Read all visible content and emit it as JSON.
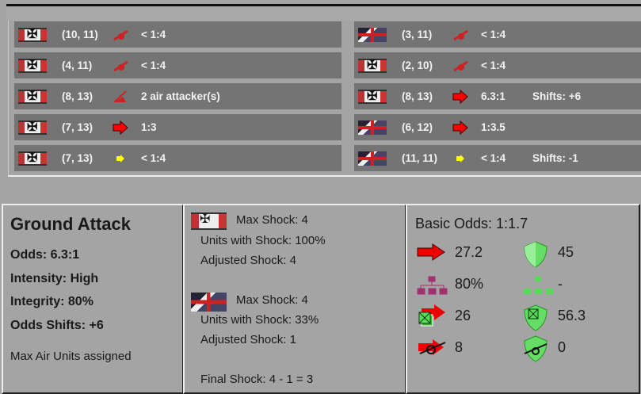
{
  "left_rows": [
    {
      "flag": "german",
      "coord": "(10, 11)",
      "icon": "artillery-icon",
      "odds": "< 1:4",
      "shifts": ""
    },
    {
      "flag": "german",
      "coord": "(4, 11)",
      "icon": "artillery-icon",
      "odds": "< 1:4",
      "shifts": ""
    },
    {
      "flag": "german",
      "coord": "(8, 13)",
      "icon": "air-attack-icon",
      "odds": "2 air attacker(s)",
      "shifts": ""
    },
    {
      "flag": "german",
      "coord": "(7, 13)",
      "icon": "red-arrow-icon",
      "odds": "1:3",
      "shifts": ""
    },
    {
      "flag": "german",
      "coord": "(7, 13)",
      "icon": "yellow-arrow-icon",
      "odds": "< 1:4",
      "shifts": ""
    }
  ],
  "right_rows": [
    {
      "flag": "allied",
      "coord": "(3, 11)",
      "icon": "artillery-icon",
      "odds": "< 1:4",
      "shifts": ""
    },
    {
      "flag": "german",
      "coord": "(2, 10)",
      "icon": "artillery-icon",
      "odds": "< 1:4",
      "shifts": ""
    },
    {
      "flag": "german",
      "coord": "(8, 13)",
      "icon": "red-arrow-icon",
      "odds": "6.3:1",
      "shifts": "Shifts: +6"
    },
    {
      "flag": "allied",
      "coord": "(6, 12)",
      "icon": "red-arrow-icon",
      "odds": "1:3.5",
      "shifts": ""
    },
    {
      "flag": "allied",
      "coord": "(11, 11)",
      "icon": "yellow-arrow-icon",
      "odds": "< 1:4",
      "shifts": "Shifts: -1"
    }
  ],
  "summary": {
    "title": "Ground Attack",
    "odds": "Odds: 6.3:1",
    "intensity": "Intensity: High",
    "integrity": "Integrity: 80%",
    "shifts": "Odds Shifts: +6",
    "note": "Max Air Units assigned"
  },
  "shock": {
    "attacker": {
      "max": "Max Shock: 4",
      "units": "Units with Shock: 100%",
      "adjusted": "Adjusted Shock: 4"
    },
    "defender": {
      "max": "Max Shock: 4",
      "units": "Units with Shock: 33%",
      "adjusted": "Adjusted Shock: 1"
    },
    "final": "Final Shock: 4 - 1 = 3"
  },
  "basic": {
    "title": "Basic Odds: 1:1.7",
    "attack": "27.2",
    "defense": "45",
    "att_integrity": "80%",
    "def_integrity": "-",
    "att_units": "26",
    "def_units": "56.3",
    "att_artillery": "8",
    "def_artillery": "0"
  },
  "colors": {
    "row": "#747474",
    "panel": "#a4a4a4",
    "attack": "#e00000",
    "defense": "#5c5"
  }
}
